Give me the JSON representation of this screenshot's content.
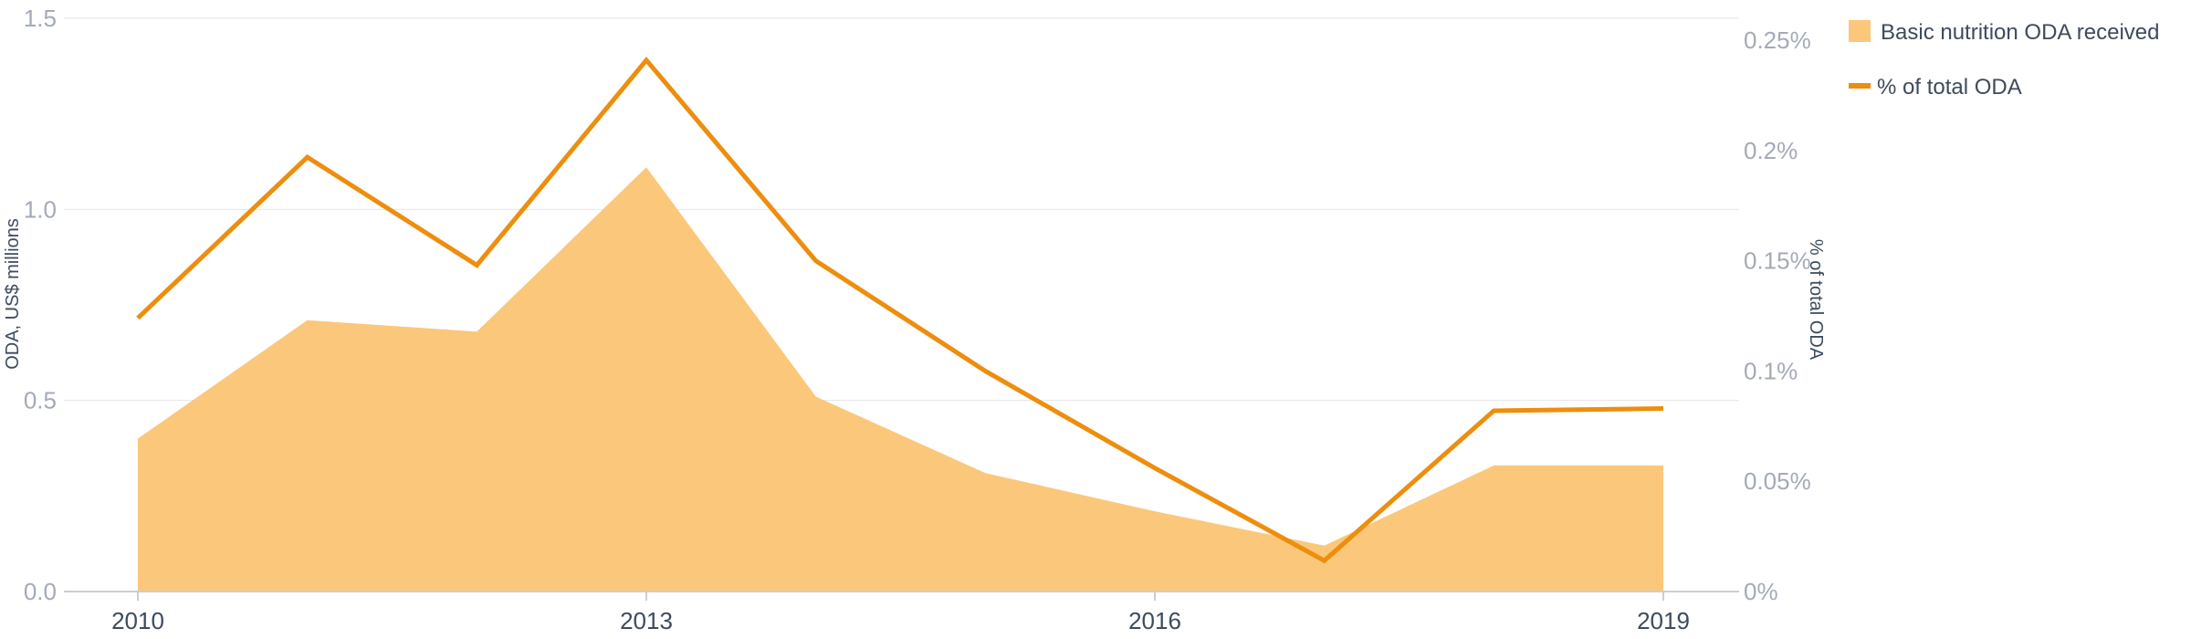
{
  "chart_data": {
    "type": "area+line",
    "x": [
      2010,
      2011,
      2012,
      2013,
      2014,
      2015,
      2016,
      2017,
      2018,
      2019
    ],
    "x_ticks": [
      "2010",
      "2013",
      "2016",
      "2019"
    ],
    "series": [
      {
        "name": "Basic nutrition ODA received",
        "type": "area",
        "axis": "left",
        "color": "#fbc77a",
        "values": [
          0.4,
          0.71,
          0.68,
          1.11,
          0.51,
          0.31,
          0.21,
          0.12,
          0.33,
          0.33
        ]
      },
      {
        "name": "% of total ODA",
        "type": "line",
        "axis": "right",
        "color": "#ed8e0e",
        "values": [
          0.124,
          0.197,
          0.148,
          0.241,
          0.15,
          0.1,
          0.056,
          0.014,
          0.082,
          0.083
        ]
      }
    ],
    "y_left": {
      "label": "ODA, US$ millions",
      "ticks": [
        "0.0",
        "0.5",
        "1.0",
        "1.5"
      ],
      "ylim": [
        0,
        1.5
      ]
    },
    "y_right": {
      "label": "% of total ODA",
      "ticks": [
        "0%",
        "0.05%",
        "0.1%",
        "0.15%",
        "0.2%",
        "0.25%"
      ],
      "ylim": [
        0,
        0.26
      ]
    },
    "legend": {
      "position": "top-right",
      "items": [
        "Basic nutrition ODA received",
        "% of total ODA"
      ]
    },
    "grid": true,
    "title": ""
  }
}
